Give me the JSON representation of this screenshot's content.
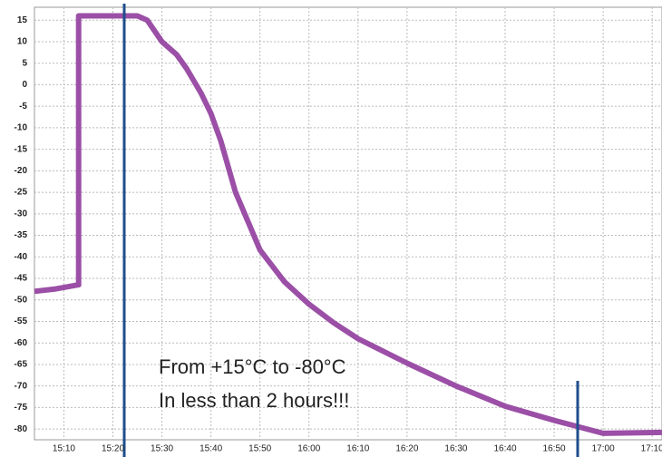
{
  "chart_data": {
    "type": "line",
    "x": [
      "15:04",
      "15:08",
      "15:13",
      "15:13",
      "15:25",
      "15:27",
      "15:30",
      "15:33",
      "15:35",
      "15:38",
      "15:40",
      "15:42",
      "15:45",
      "15:48",
      "15:50",
      "15:55",
      "16:00",
      "16:05",
      "16:10",
      "16:20",
      "16:30",
      "16:40",
      "16:50",
      "17:00",
      "17:12"
    ],
    "series": [
      {
        "color": "#9b4fa6",
        "values": [
          -48,
          -47.5,
          -46.5,
          16,
          16,
          15,
          10,
          7,
          3.8,
          -2,
          -6.7,
          -13,
          -25,
          -33,
          -38.4,
          -45.8,
          -51,
          -55.3,
          -59,
          -64.7,
          -70,
          -74.7,
          -78,
          -81,
          -80.8
        ]
      }
    ],
    "xlim": [
      "15:04",
      "17:12"
    ],
    "xticks": [
      "15:10",
      "15:20",
      "15:30",
      "15:40",
      "15:50",
      "16:00",
      "16:10",
      "16:20",
      "16:30",
      "16:40",
      "16:50",
      "17:00",
      "17:10"
    ],
    "ylim": [
      -82.5,
      18
    ],
    "yticks": [
      15,
      10,
      5,
      0,
      -5,
      -10,
      -15,
      -20,
      -25,
      -30,
      -35,
      -40,
      -45,
      -50,
      -55,
      -60,
      -65,
      -70,
      -75,
      -80
    ],
    "grid": true,
    "annotations": [
      "From +15°C to -80°C",
      "In less than 2 hours!!!"
    ]
  }
}
